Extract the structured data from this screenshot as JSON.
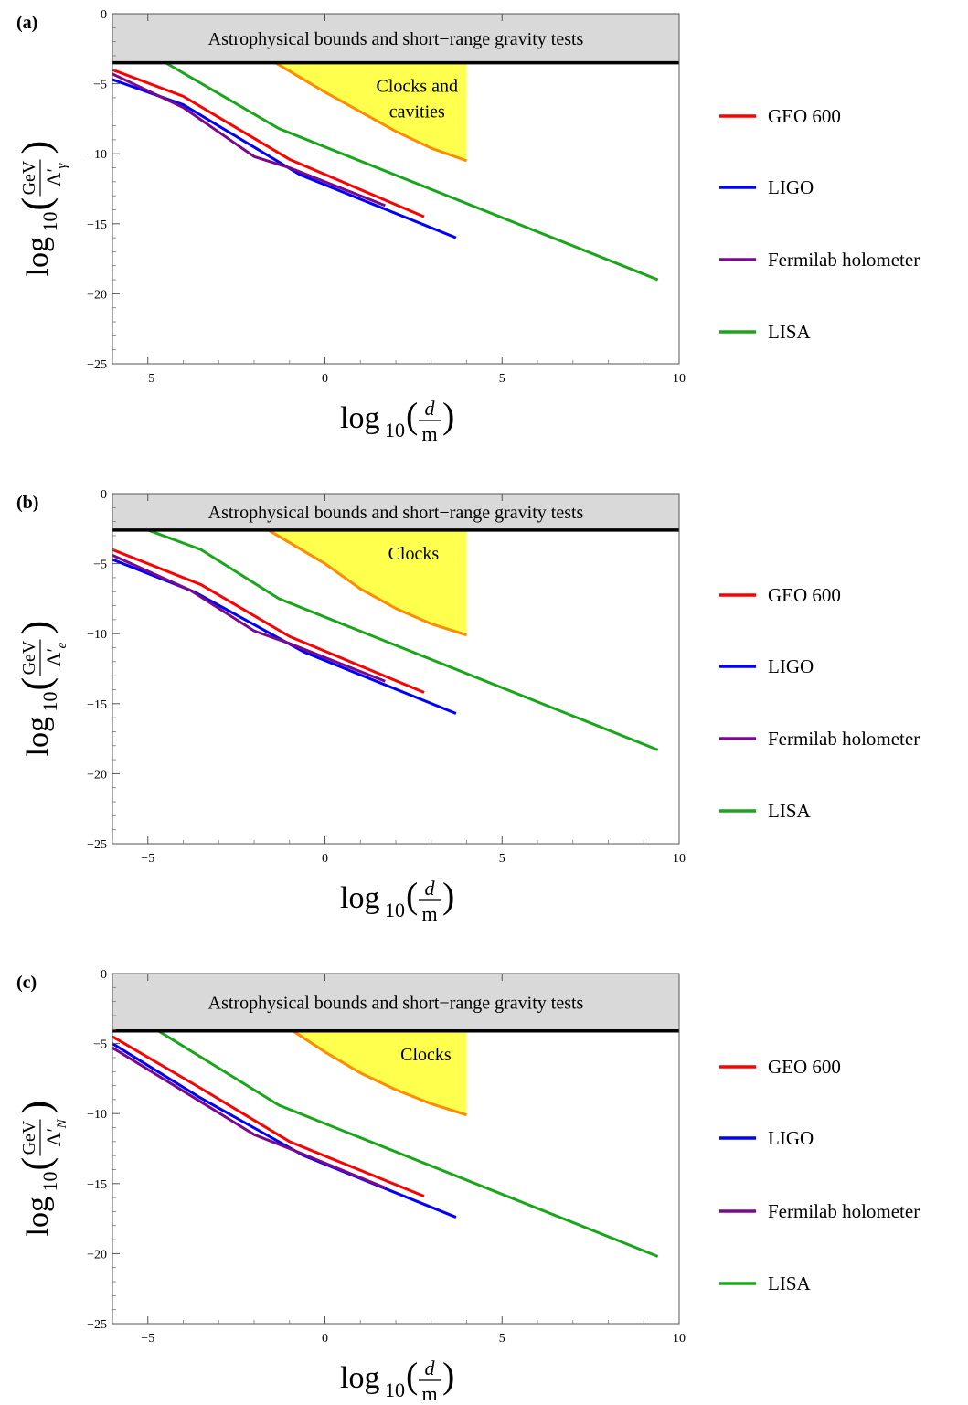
{
  "chart_data": [
    {
      "type": "line",
      "panel_label": "(a)",
      "xlabel": {
        "pre": "log",
        "sub": "10",
        "num": "d",
        "den": "m"
      },
      "ylabel": {
        "pre": "log",
        "sub": "10",
        "num": "GeV",
        "den": "Λ′",
        "den_sub": "γ"
      },
      "xlim": [
        -6,
        10
      ],
      "ylim": [
        -25,
        0
      ],
      "x_ticks": [
        -5,
        0,
        5,
        10
      ],
      "y_ticks": [
        0,
        -5,
        -10,
        -15,
        -20,
        -25
      ],
      "grid": false,
      "legend_placement": "right",
      "shaded_region": {
        "label": "Astrophysical bounds and short−range gravity tests",
        "y_bound": -3.5,
        "color": "#d9d9d9"
      },
      "clocks_region": {
        "label_lines": [
          "Clocks and",
          "cavities"
        ],
        "x": [
          -1.4,
          0,
          1,
          2,
          3,
          4
        ],
        "y": [
          -3.5,
          -5.6,
          -7.0,
          -8.4,
          -9.6,
          -10.5
        ],
        "fill": "#ffff4d",
        "stroke": "#ff8c00"
      },
      "series": [
        {
          "name": "GEO 600",
          "color": "#ff0000",
          "x": [
            -6,
            -4,
            -1,
            2.8
          ],
          "y": [
            -4.0,
            -5.9,
            -10.4,
            -14.5
          ]
        },
        {
          "name": "LIGO",
          "color": "#0000ff",
          "x": [
            -6,
            -4,
            -0.7,
            3.7
          ],
          "y": [
            -4.7,
            -6.5,
            -11.5,
            -16.0
          ]
        },
        {
          "name": "Fermilab holometer",
          "color": "#7a0a8c",
          "x": [
            -6,
            -4,
            -2,
            -1,
            1.7
          ],
          "y": [
            -4.3,
            -6.7,
            -10.2,
            -11.0,
            -13.7
          ]
        },
        {
          "name": "LISA",
          "color": "#1aa61a",
          "x": [
            -4.5,
            -1.3,
            9.4
          ],
          "y": [
            -3.5,
            -8.2,
            -19.0
          ]
        }
      ]
    },
    {
      "type": "line",
      "panel_label": "(b)",
      "xlabel": {
        "pre": "log",
        "sub": "10",
        "num": "d",
        "den": "m"
      },
      "ylabel": {
        "pre": "log",
        "sub": "10",
        "num": "GeV",
        "den": "Λ′",
        "den_sub": "e"
      },
      "xlim": [
        -6,
        10
      ],
      "ylim": [
        -25,
        0
      ],
      "x_ticks": [
        -5,
        0,
        5,
        10
      ],
      "y_ticks": [
        0,
        -5,
        -10,
        -15,
        -20,
        -25
      ],
      "grid": false,
      "legend_placement": "right",
      "shaded_region": {
        "label": "Astrophysical bounds and short−range gravity tests",
        "y_bound": -2.6,
        "color": "#d9d9d9"
      },
      "clocks_region": {
        "label_lines": [
          "Clocks"
        ],
        "x": [
          -1.6,
          0,
          1,
          2,
          3,
          4
        ],
        "y": [
          -2.6,
          -5.0,
          -6.8,
          -8.2,
          -9.3,
          -10.1
        ],
        "fill": "#ffff4d",
        "stroke": "#ff8c00"
      },
      "series": [
        {
          "name": "GEO 600",
          "color": "#ff0000",
          "x": [
            -6,
            -3.5,
            -1,
            2.8
          ],
          "y": [
            -4.0,
            -6.5,
            -10.2,
            -14.2
          ]
        },
        {
          "name": "LIGO",
          "color": "#0000ff",
          "x": [
            -6,
            -3.7,
            -0.6,
            3.7
          ],
          "y": [
            -4.7,
            -7.0,
            -11.3,
            -15.7
          ]
        },
        {
          "name": "Fermilab holometer",
          "color": "#7a0a8c",
          "x": [
            -6,
            -3.8,
            -2,
            -1,
            1.7
          ],
          "y": [
            -4.4,
            -6.9,
            -9.8,
            -10.7,
            -13.4
          ]
        },
        {
          "name": "LISA",
          "color": "#1aa61a",
          "x": [
            -5.0,
            -3.5,
            -1.3,
            9.4
          ],
          "y": [
            -2.6,
            -4.0,
            -7.5,
            -18.3
          ]
        }
      ]
    },
    {
      "type": "line",
      "panel_label": "(c)",
      "xlabel": {
        "pre": "log",
        "sub": "10",
        "num": "d",
        "den": "m"
      },
      "ylabel": {
        "pre": "log",
        "sub": "10",
        "num": "GeV",
        "den": "Λ′",
        "den_sub": "N"
      },
      "xlim": [
        -6,
        10
      ],
      "ylim": [
        -25,
        0
      ],
      "x_ticks": [
        -5,
        0,
        5,
        10
      ],
      "y_ticks": [
        0,
        -5,
        -10,
        -15,
        -20,
        -25
      ],
      "grid": false,
      "legend_placement": "right",
      "shaded_region": {
        "label": "Astrophysical bounds and short−range gravity tests",
        "y_bound": -4.1,
        "color": "#d9d9d9"
      },
      "clocks_region": {
        "label_lines": [
          "Clocks"
        ],
        "x": [
          -0.9,
          0,
          1,
          2,
          3,
          4
        ],
        "y": [
          -4.1,
          -5.6,
          -7.1,
          -8.3,
          -9.3,
          -10.1
        ],
        "fill": "#ffff4d",
        "stroke": "#ff8c00"
      },
      "series": [
        {
          "name": "GEO 600",
          "color": "#ff0000",
          "x": [
            -6,
            -3.5,
            -1,
            2.8
          ],
          "y": [
            -4.5,
            -8.2,
            -12.0,
            -15.9
          ]
        },
        {
          "name": "LIGO",
          "color": "#0000ff",
          "x": [
            -6,
            -3.5,
            -0.6,
            3.7
          ],
          "y": [
            -5.0,
            -8.9,
            -13.0,
            -17.4
          ]
        },
        {
          "name": "Fermilab holometer",
          "color": "#7a0a8c",
          "x": [
            -6,
            -3.8,
            -2,
            -1,
            1.7
          ],
          "y": [
            -5.3,
            -8.7,
            -11.5,
            -12.5,
            -15.3
          ]
        },
        {
          "name": "LISA",
          "color": "#1aa61a",
          "x": [
            -4.7,
            -1.3,
            9.4
          ],
          "y": [
            -4.1,
            -9.4,
            -20.2
          ]
        }
      ]
    }
  ]
}
